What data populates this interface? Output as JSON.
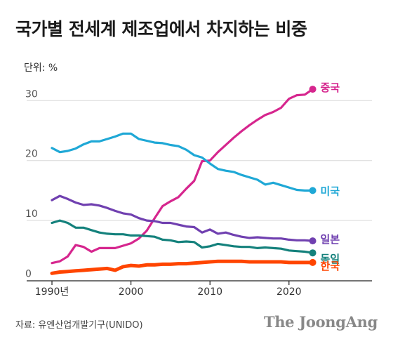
{
  "title": "국가별 전세계 제조업에서 차지하는 비중",
  "unit_label": "단위: %",
  "source": "자료: 유엔산업개발기구(UNIDO)",
  "brand": "The JoongAng",
  "chart_data": {
    "type": "line",
    "title": "국가별 전세계 제조업에서 차지하는 비중",
    "xlabel": "",
    "ylabel": "단위: %",
    "xlim": [
      1990,
      2024
    ],
    "ylim": [
      0,
      33
    ],
    "grid": true,
    "x_ticks": [
      {
        "value": 1990,
        "label": "1990년"
      },
      {
        "value": 2000,
        "label": "2000"
      },
      {
        "value": 2010,
        "label": "2010"
      },
      {
        "value": 2020,
        "label": "2020"
      }
    ],
    "y_ticks": [
      {
        "value": 0,
        "label": "0"
      },
      {
        "value": 10,
        "label": "10"
      },
      {
        "value": 20,
        "label": "20"
      },
      {
        "value": 30,
        "label": "30"
      }
    ],
    "x": [
      1990,
      1991,
      1992,
      1993,
      1994,
      1995,
      1996,
      1997,
      1998,
      1999,
      2000,
      2001,
      2002,
      2003,
      2004,
      2005,
      2006,
      2007,
      2008,
      2009,
      2010,
      2011,
      2012,
      2013,
      2014,
      2015,
      2016,
      2017,
      2018,
      2019,
      2020,
      2021,
      2022,
      2023
    ],
    "series": [
      {
        "name": "중국",
        "color": "#d6268e",
        "values": [
          2.9,
          3.2,
          4.0,
          5.9,
          5.6,
          4.8,
          5.4,
          5.4,
          5.4,
          5.8,
          6.2,
          7.0,
          8.3,
          10.4,
          12.4,
          13.2,
          13.9,
          15.3,
          16.6,
          19.9,
          20.0,
          21.4,
          22.6,
          23.8,
          24.9,
          25.9,
          26.8,
          27.6,
          28.1,
          28.8,
          30.3,
          30.9,
          31.0,
          31.9
        ]
      },
      {
        "name": "미국",
        "color": "#1fa8d6",
        "values": [
          22.1,
          21.4,
          21.6,
          22.0,
          22.7,
          23.2,
          23.2,
          23.6,
          24.0,
          24.5,
          24.5,
          23.6,
          23.3,
          23.0,
          22.9,
          22.6,
          22.4,
          21.8,
          20.9,
          20.5,
          19.5,
          18.6,
          18.3,
          18.1,
          17.6,
          17.2,
          16.8,
          16.0,
          16.3,
          15.9,
          15.5,
          15.1,
          15.0,
          15.0
        ]
      },
      {
        "name": "일본",
        "color": "#7040b0",
        "values": [
          13.4,
          14.1,
          13.6,
          13.0,
          12.6,
          12.7,
          12.5,
          12.1,
          11.6,
          11.2,
          11.0,
          10.4,
          10.0,
          9.9,
          9.6,
          9.6,
          9.3,
          9.0,
          8.9,
          8.0,
          8.5,
          7.8,
          8.0,
          7.6,
          7.3,
          7.1,
          7.2,
          7.1,
          7.0,
          7.0,
          6.8,
          6.7,
          6.7,
          6.6
        ]
      },
      {
        "name": "독일",
        "color": "#14817c",
        "values": [
          9.6,
          10.0,
          9.6,
          8.8,
          8.8,
          8.4,
          8.0,
          7.8,
          7.7,
          7.7,
          7.5,
          7.5,
          7.4,
          7.3,
          6.8,
          6.7,
          6.4,
          6.5,
          6.4,
          5.5,
          5.7,
          6.1,
          5.9,
          5.7,
          5.6,
          5.6,
          5.4,
          5.5,
          5.4,
          5.3,
          5.0,
          4.9,
          4.8,
          4.6
        ]
      },
      {
        "name": "한국",
        "color": "#ff4500",
        "values": [
          1.2,
          1.4,
          1.5,
          1.6,
          1.7,
          1.8,
          1.9,
          2.0,
          1.7,
          2.3,
          2.5,
          2.4,
          2.6,
          2.6,
          2.7,
          2.7,
          2.8,
          2.8,
          2.9,
          3.0,
          3.1,
          3.2,
          3.2,
          3.2,
          3.2,
          3.1,
          3.1,
          3.1,
          3.1,
          3.1,
          3.0,
          3.0,
          3.0,
          3.0
        ]
      }
    ]
  }
}
